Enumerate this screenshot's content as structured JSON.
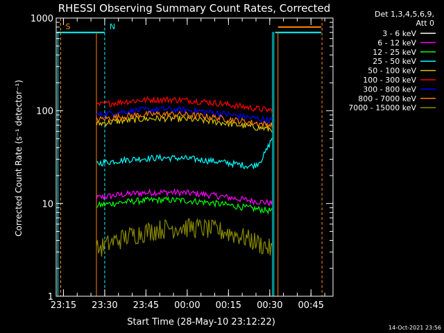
{
  "chart_data": {
    "type": "line",
    "title": "RHESSI Observing Summary Count Rates, Corrected",
    "xlabel": "Start Time (28-May-10 23:12:22)",
    "ylabel": "Corrected Count Rate (s⁻¹ detector⁻¹)",
    "y_scale": "log",
    "ylim": [
      1,
      1000
    ],
    "xlim": [
      "23:12:22",
      "00:53:00"
    ],
    "x_ticks": [
      "23:15",
      "23:30",
      "23:45",
      "00:00",
      "00:15",
      "00:30",
      "00:45"
    ],
    "y_ticks": [
      "1",
      "10",
      "100",
      "1000"
    ],
    "legend_header": [
      "Det 1,3,4,5,6,9,",
      "Att 0"
    ],
    "legend_position": "right",
    "timestamp": "14-Oct-2021 23:56",
    "flag_markers": [
      {
        "label": "S",
        "time": "23:14",
        "color": "#ff8c1a"
      },
      {
        "label": "N",
        "time": "23:30",
        "color": "#00ffff"
      }
    ],
    "series": [
      {
        "name": "3 - 6 keV",
        "color": "#000000",
        "level": 1.0
      },
      {
        "name": "6 - 12 keV",
        "color": "#ff00ff",
        "level": 11.5
      },
      {
        "name": "12 - 25 keV",
        "color": "#00ff00",
        "level": 9.5
      },
      {
        "name": "25 - 50 keV",
        "color": "#00ffff",
        "level": 27
      },
      {
        "name": "50 - 100 keV",
        "color": "#dcc800",
        "level": 72
      },
      {
        "name": "100 - 300 keV",
        "color": "#ff0000",
        "level": 115
      },
      {
        "name": "300 - 800 keV",
        "color": "#0000ff",
        "level": 90
      },
      {
        "name": "800 - 7000 keV",
        "color": "#ff8000",
        "level": 80
      },
      {
        "name": "7000 - 15000 keV",
        "color": "#8a8a00",
        "level": 4
      }
    ]
  }
}
